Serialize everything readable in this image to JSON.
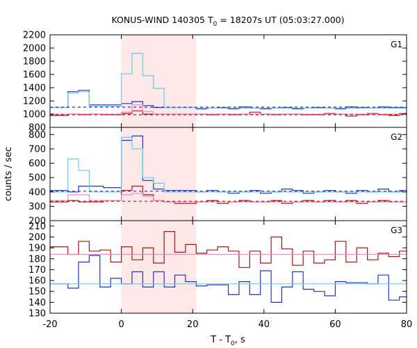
{
  "chart_data": {
    "type": "line",
    "title": "KONUS-WIND 140305 T",
    "title_sub": "0",
    "title_rest": " = 18207s UT (05:03:27.000)",
    "xlabel": "T - T",
    "xlabel_sub": "0",
    "xlabel_rest": ", s",
    "ylabel": "counts / sec",
    "xlim": [
      -20,
      80
    ],
    "xticks": [
      -20,
      0,
      20,
      40,
      60,
      80
    ],
    "highlight": {
      "x0": 0,
      "x1": 21,
      "color": "#fde8e8"
    },
    "colors": {
      "light_blue": "#66ccee",
      "dark_blue": "#2233bb",
      "dark_red": "#aa1111",
      "pink": "#ee88cc"
    },
    "panels": [
      {
        "label": "G1",
        "ylim": [
          800,
          2200
        ],
        "yticks": [
          800,
          1000,
          1200,
          1400,
          1600,
          1800,
          2000,
          2200
        ],
        "series": [
          {
            "color_key": "dark_blue",
            "style": "step",
            "x": [
              -20,
              -15,
              -12,
              -9,
              0,
              3,
              6,
              9,
              12,
              21,
              24,
              27,
              30,
              33,
              36,
              39,
              42,
              45,
              48,
              51,
              54,
              57,
              60,
              63,
              66,
              69,
              72,
              75,
              78,
              80
            ],
            "y": [
              1100,
              1340,
              1360,
              1140,
              1160,
              1190,
              1130,
              1100,
              1100,
              1080,
              1090,
              1100,
              1080,
              1110,
              1090,
              1080,
              1090,
              1100,
              1080,
              1090,
              1100,
              1090,
              1080,
              1110,
              1100,
              1090,
              1110,
              1100,
              1100,
              1100
            ]
          },
          {
            "color_key": "light_blue",
            "style": "step",
            "x": [
              -20,
              -15,
              -12,
              -9,
              0,
              3,
              6,
              9,
              12,
              21,
              80
            ],
            "y": [
              1100,
              1320,
              1340,
              1120,
              1610,
              1920,
              1580,
              1390,
              1100,
              1090,
              1090
            ]
          },
          {
            "color_key": "dark_red",
            "style": "step",
            "x": [
              -20,
              -15,
              -12,
              -9,
              -5,
              0,
              3,
              6,
              9,
              12,
              21,
              24,
              27,
              30,
              33,
              36,
              39,
              42,
              45,
              48,
              51,
              54,
              57,
              60,
              63,
              66,
              69,
              72,
              75,
              78,
              80
            ],
            "y": [
              980,
              1000,
              990,
              1000,
              990,
              1010,
              1050,
              1000,
              1000,
              1000,
              1000,
              990,
              1000,
              990,
              1000,
              1030,
              1000,
              990,
              1000,
              1000,
              990,
              990,
              1010,
              1000,
              970,
              990,
              1010,
              990,
              980,
              1010,
              1000
            ]
          },
          {
            "color_key": "pink",
            "style": "step",
            "x": [
              -20,
              0,
              3,
              6,
              9,
              12,
              21,
              80
            ],
            "y": [
              1000,
              1030,
              1140,
              1040,
              1000,
              1000,
              1000,
              1000
            ]
          },
          {
            "color_key": "dark_blue",
            "style": "dashed",
            "x": [
              -20,
              80
            ],
            "y": [
              1105,
              1105
            ]
          },
          {
            "color_key": "dark_red",
            "style": "dashed",
            "x": [
              -20,
              80
            ],
            "y": [
              990,
              990
            ]
          }
        ]
      },
      {
        "label": "G2",
        "ylim": [
          200,
          850
        ],
        "yticks": [
          200,
          300,
          400,
          500,
          600,
          700,
          800
        ],
        "series": [
          {
            "color_key": "dark_blue",
            "style": "step",
            "x": [
              -20,
              -15,
              -12,
              -9,
              -5,
              0,
              3,
              6,
              9,
              12,
              21,
              24,
              27,
              30,
              33,
              36,
              39,
              42,
              45,
              48,
              51,
              54,
              57,
              60,
              63,
              66,
              69,
              72,
              75,
              78,
              80
            ],
            "y": [
              410,
              400,
              440,
              440,
              430,
              760,
              790,
              480,
              420,
              410,
              400,
              410,
              400,
              390,
              400,
              410,
              390,
              400,
              420,
              410,
              390,
              400,
              410,
              400,
              390,
              410,
              400,
              420,
              400,
              410,
              400
            ]
          },
          {
            "color_key": "light_blue",
            "style": "step",
            "x": [
              -20,
              -15,
              -12,
              -9,
              -5,
              0,
              3,
              6,
              9,
              12,
              21,
              80
            ],
            "y": [
              400,
              630,
              550,
              400,
              400,
              780,
              700,
              500,
              460,
              400,
              400,
              400
            ]
          },
          {
            "color_key": "dark_red",
            "style": "step",
            "x": [
              -20,
              -15,
              -12,
              -9,
              -5,
              0,
              3,
              6,
              9,
              12,
              15,
              18,
              21,
              24,
              27,
              30,
              33,
              36,
              39,
              42,
              45,
              48,
              51,
              54,
              57,
              60,
              63,
              66,
              69,
              72,
              75,
              78,
              80
            ],
            "y": [
              330,
              340,
              330,
              330,
              340,
              410,
              440,
              380,
              340,
              330,
              320,
              320,
              330,
              340,
              320,
              330,
              340,
              330,
              330,
              340,
              320,
              330,
              340,
              330,
              340,
              330,
              340,
              320,
              330,
              340,
              330,
              330,
              330
            ]
          },
          {
            "color_key": "pink",
            "style": "step",
            "x": [
              -20,
              -15,
              -9,
              0,
              3,
              6,
              9,
              12,
              21,
              80
            ],
            "y": [
              340,
              380,
              340,
              380,
              390,
              370,
              340,
              330,
              330,
              330
            ]
          },
          {
            "color_key": "dark_blue",
            "style": "dashed",
            "x": [
              -20,
              80
            ],
            "y": [
              405,
              405
            ]
          },
          {
            "color_key": "dark_red",
            "style": "dashed",
            "x": [
              -20,
              80
            ],
            "y": [
              335,
              335
            ]
          }
        ]
      },
      {
        "label": "G3",
        "ylim": [
          130,
          215
        ],
        "yticks": [
          130,
          140,
          150,
          160,
          170,
          180,
          190,
          200,
          210
        ],
        "series": [
          {
            "color_key": "dark_red",
            "style": "step",
            "x": [
              -20,
              -15,
              -12,
              -9,
              -6,
              -3,
              0,
              3,
              6,
              9,
              12,
              15,
              18,
              21,
              24,
              27,
              30,
              33,
              36,
              39,
              42,
              45,
              48,
              51,
              54,
              57,
              60,
              63,
              66,
              69,
              72,
              75,
              78,
              80
            ],
            "y": [
              191,
              184,
              196,
              187,
              188,
              177,
              191,
              179,
              190,
              176,
              205,
              186,
              193,
              185,
              188,
              191,
              187,
              172,
              187,
              176,
              200,
              189,
              174,
              187,
              176,
              179,
              196,
              177,
              190,
              179,
              185,
              182,
              187,
              181
            ]
          },
          {
            "color_key": "dark_blue",
            "style": "step",
            "x": [
              -20,
              -15,
              -12,
              -9,
              -6,
              -3,
              0,
              3,
              6,
              9,
              12,
              15,
              18,
              21,
              24,
              27,
              30,
              33,
              36,
              39,
              42,
              45,
              48,
              51,
              54,
              57,
              60,
              63,
              66,
              69,
              72,
              75,
              78,
              80
            ],
            "y": [
              157,
              153,
              177,
              183,
              154,
              162,
              157,
              168,
              154,
              168,
              154,
              165,
              159,
              155,
              156,
              156,
              147,
              159,
              147,
              169,
              140,
              154,
              168,
              152,
              150,
              146,
              159,
              158,
              158,
              157,
              165,
              142,
              145,
              142
            ]
          },
          {
            "color_key": "pink",
            "style": "solid",
            "x": [
              -20,
              80
            ],
            "y": [
              184,
              184
            ]
          },
          {
            "color_key": "light_blue",
            "style": "solid",
            "x": [
              -20,
              80
            ],
            "y": [
              157,
              157
            ]
          }
        ]
      }
    ]
  }
}
